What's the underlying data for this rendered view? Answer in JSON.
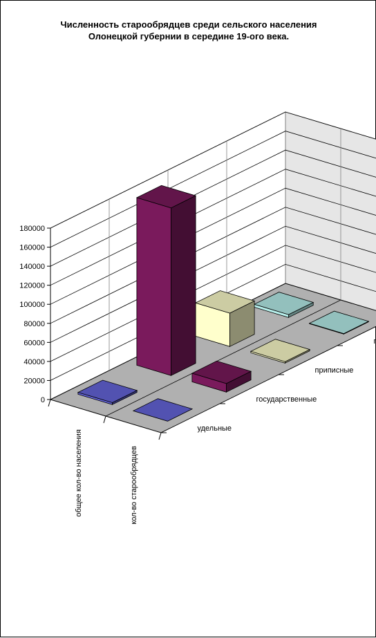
{
  "chart_data": {
    "type": "bar3d",
    "title_lines": [
      "Численность старообрядцев среди сельского населения",
      "Олонецкой губернии в середине 19-ого века."
    ],
    "categories": [
      "общее кол-во населения",
      "кол-во старообрядцев"
    ],
    "series": [
      {
        "name": "удельные",
        "values": [
          2000,
          0
        ],
        "color": "#6666dd"
      },
      {
        "name": "государственные",
        "values": [
          176000,
          9000
        ],
        "color": "#7a1a5c"
      },
      {
        "name": "приписные",
        "values": [
          35000,
          1500
        ],
        "color": "#ffffcc"
      },
      {
        "name": "помещичьи",
        "values": [
          3000,
          500
        ],
        "color": "#b8f0ec"
      }
    ],
    "y_ticks": [
      "0",
      "20000",
      "40000",
      "60000",
      "80000",
      "100000",
      "120000",
      "140000",
      "160000",
      "180000"
    ],
    "ylim": [
      0,
      180000
    ],
    "grid": true
  }
}
